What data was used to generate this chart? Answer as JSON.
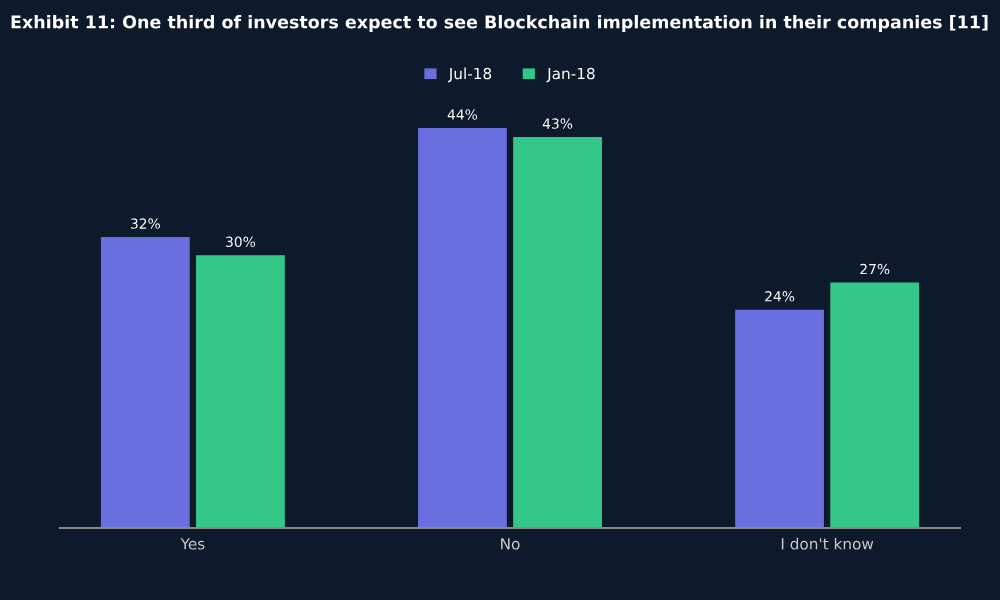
{
  "chart_data": {
    "type": "bar",
    "title": "Exhibit 11: One third of investors expect to see Blockchain implementation in their companies [11]",
    "categories": [
      "Yes",
      "No",
      "I don't know"
    ],
    "series": [
      {
        "name": "Jul-18",
        "color": "#6a6fe0",
        "values": [
          32,
          44,
          24
        ],
        "value_labels": [
          "32%",
          "44%",
          "24%"
        ]
      },
      {
        "name": "Jan-18",
        "color": "#33c889",
        "values": [
          30,
          43,
          27
        ],
        "value_labels": [
          "30%",
          "43%",
          "27%"
        ]
      }
    ],
    "legend": "top",
    "grid": false
  }
}
